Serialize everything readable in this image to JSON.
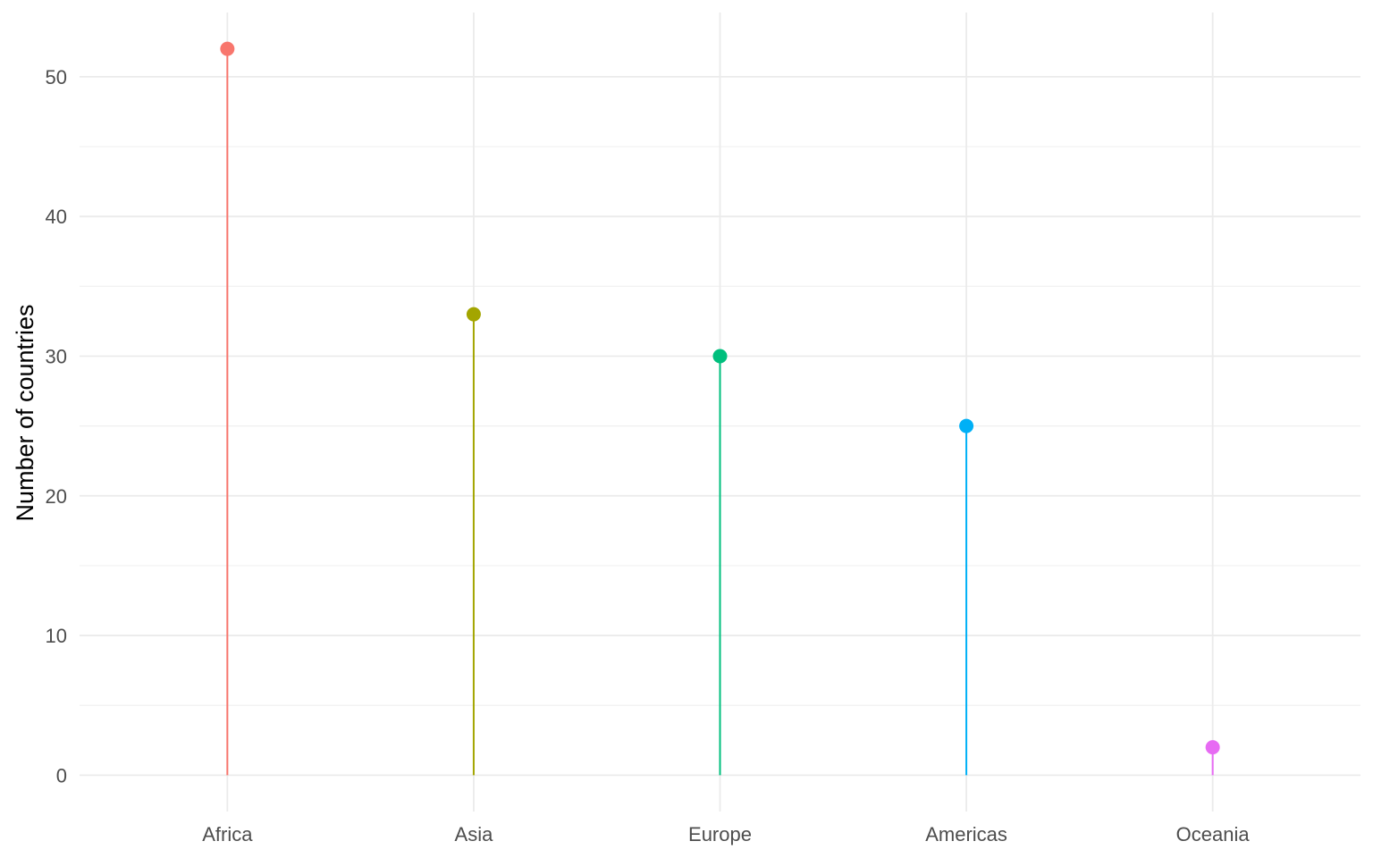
{
  "chart_data": {
    "type": "lollipop",
    "categories": [
      "Africa",
      "Asia",
      "Europe",
      "Americas",
      "Oceania"
    ],
    "values": [
      52,
      33,
      30,
      25,
      2
    ],
    "colors": [
      "#F8766D",
      "#A3A500",
      "#00BF7D",
      "#00B0F6",
      "#E76BF3"
    ],
    "ylabel": "Number of countries",
    "xlabel": "",
    "ylim": [
      -2.6,
      54.6
    ],
    "yticks": [
      0,
      10,
      20,
      30,
      40,
      50
    ],
    "grid": true,
    "legend": "none"
  }
}
